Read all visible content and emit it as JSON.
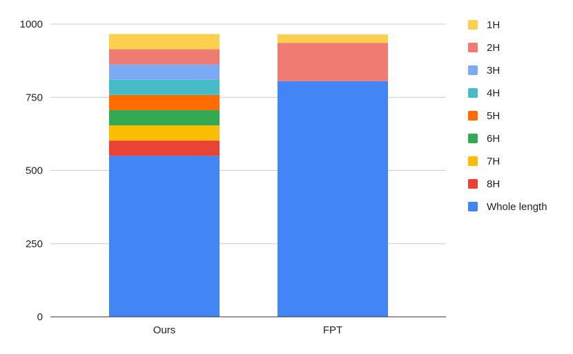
{
  "chart_data": {
    "type": "bar",
    "stacked": true,
    "categories": [
      "Ours",
      "FPT"
    ],
    "ylim": [
      0,
      1000
    ],
    "yticks": [
      0,
      250,
      500,
      750,
      1000
    ],
    "grid": true,
    "legend_position": "right",
    "title": "",
    "xlabel": "",
    "ylabel": "",
    "series": [
      {
        "name": "Whole length",
        "color": "#4285F4",
        "values": [
          550,
          805
        ]
      },
      {
        "name": "8H",
        "color": "#EA4335",
        "values": [
          52,
          0
        ]
      },
      {
        "name": "7H",
        "color": "#FBBC04",
        "values": [
          52,
          0
        ]
      },
      {
        "name": "6H",
        "color": "#34A853",
        "values": [
          52,
          0
        ]
      },
      {
        "name": "5H",
        "color": "#FF6D01",
        "values": [
          52,
          0
        ]
      },
      {
        "name": "4H",
        "color": "#46BDC6",
        "values": [
          52,
          0
        ]
      },
      {
        "name": "3H",
        "color": "#7BAAF7",
        "values": [
          52,
          0
        ]
      },
      {
        "name": "2H",
        "color": "#F07B72",
        "values": [
          52,
          131
        ]
      },
      {
        "name": "1H",
        "color": "#FCD04F",
        "values": [
          52,
          29
        ]
      }
    ],
    "legend_order": [
      "1H",
      "2H",
      "3H",
      "4H",
      "5H",
      "6H",
      "7H",
      "8H",
      "Whole length"
    ]
  }
}
